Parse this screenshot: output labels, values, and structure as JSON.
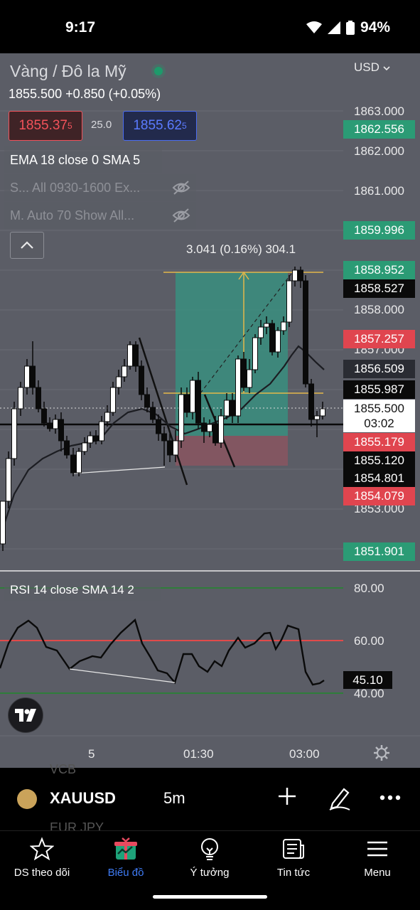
{
  "status_bar": {
    "time": "9:17",
    "battery": "94%"
  },
  "chart": {
    "title": "Vàng / Đô la Mỹ",
    "price_line": "1855.500  +0.850 (+0.05%)",
    "bid": {
      "main": "1855.37",
      "sup": "5"
    },
    "spread": "25.0",
    "ask": {
      "main": "1855.62",
      "sup": "5"
    },
    "currency": "USD",
    "indicators": {
      "ema": "EMA 18 close 0 SMA 5",
      "sessions": "S... All 0930-1600 Ex...",
      "volume_profile": "M. Auto 70 Show All..."
    },
    "measure": "3.041 (0.16%) 304.1",
    "price_axis": [
      "1863.000",
      "1862.000",
      "1861.000",
      "1858.000",
      "1857.000",
      "1853.000"
    ],
    "badges": {
      "b1862_556": "1862.556",
      "b1859_996": "1859.996",
      "b1858_952": "1858.952",
      "b1858_527": "1858.527",
      "b1857_257": "1857.257",
      "b1856_509": "1856.509",
      "b1855_987": "1855.987",
      "current_price": "1855.500",
      "countdown": "03:02",
      "b1855_179": "1855.179",
      "b1855_120": "1855.120",
      "b1854_801": "1854.801",
      "b1854_079": "1854.079",
      "b1851_901": "1851.901"
    },
    "rsi": {
      "label": "RSI 14 close SMA 14 2",
      "axis": [
        "80.00",
        "60.00",
        "40.00"
      ],
      "value": "45.10"
    },
    "time_axis": [
      "5",
      "01:30",
      "03:00"
    ],
    "colors": {
      "green": "#2b9b75",
      "red": "#e0454f",
      "accent": "#3f7cf6"
    }
  },
  "symbol_bar": {
    "ghost_top": "VCB",
    "ghost_bottom": "EUR JPY",
    "symbol": "XAUUSD",
    "interval": "5m"
  },
  "tabs": [
    {
      "label": "DS theo dõi",
      "icon": "star-icon"
    },
    {
      "label": "Biểu đồ",
      "icon": "chart-gift-icon"
    },
    {
      "label": "Ý tưởng",
      "icon": "lightbulb-icon"
    },
    {
      "label": "Tin tức",
      "icon": "news-icon"
    },
    {
      "label": "Menu",
      "icon": "menu-icon"
    }
  ]
}
